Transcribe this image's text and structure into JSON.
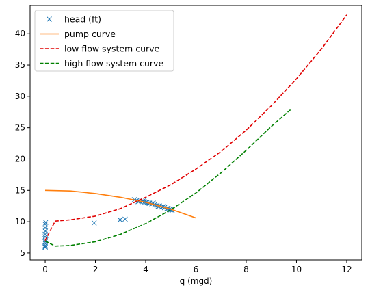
{
  "chart_data": {
    "type": "line",
    "title": "",
    "xlabel": "q (mgd)",
    "ylabel": "",
    "xlim": [
      -0.6,
      12.6
    ],
    "ylim": [
      3.9,
      44.5
    ],
    "xticks": [
      0,
      2,
      4,
      6,
      8,
      10,
      12
    ],
    "yticks": [
      5,
      10,
      15,
      20,
      25,
      30,
      35,
      40
    ],
    "grid": false,
    "legend_position": "top-left",
    "series": [
      {
        "name": "head (ft)",
        "kind": "scatter",
        "marker": "x",
        "color": "#1f77b4",
        "points": [
          [
            0.0,
            5.9
          ],
          [
            0.0,
            6.2
          ],
          [
            0.01,
            6.5
          ],
          [
            0.0,
            6.8
          ],
          [
            0.02,
            7.1
          ],
          [
            0.0,
            7.6
          ],
          [
            0.0,
            8.0
          ],
          [
            0.01,
            8.5
          ],
          [
            0.0,
            9.0
          ],
          [
            0.0,
            9.6
          ],
          [
            0.02,
            9.9
          ],
          [
            0.0,
            6.0
          ],
          [
            1.95,
            9.8
          ],
          [
            2.98,
            10.3
          ],
          [
            3.18,
            10.4
          ],
          [
            3.55,
            13.5
          ],
          [
            3.65,
            13.4
          ],
          [
            3.75,
            13.3
          ],
          [
            3.85,
            13.25
          ],
          [
            3.95,
            13.15
          ],
          [
            4.05,
            13.05
          ],
          [
            4.15,
            12.95
          ],
          [
            4.25,
            12.85
          ],
          [
            4.35,
            12.7
          ],
          [
            4.45,
            12.6
          ],
          [
            4.55,
            12.5
          ],
          [
            4.65,
            12.35
          ],
          [
            4.75,
            12.25
          ],
          [
            4.85,
            12.1
          ],
          [
            4.95,
            11.95
          ],
          [
            5.0,
            11.9
          ],
          [
            5.05,
            11.8
          ],
          [
            3.7,
            13.2
          ],
          [
            3.9,
            13.3
          ],
          [
            4.1,
            12.9
          ],
          [
            4.3,
            12.95
          ],
          [
            4.5,
            12.45
          ],
          [
            4.7,
            12.4
          ],
          [
            4.9,
            12.05
          ],
          [
            4.0,
            13.1
          ]
        ]
      },
      {
        "name": "pump curve",
        "kind": "line",
        "dash": "solid",
        "color": "#ff7f0e",
        "x": [
          0,
          1,
          2,
          3,
          4,
          5,
          6
        ],
        "y": [
          15.0,
          14.9,
          14.5,
          13.9,
          13.1,
          12.0,
          10.6
        ]
      },
      {
        "name": "low flow system curve",
        "kind": "line",
        "dash": "dashed",
        "color": "#e00000",
        "x": [
          0,
          0.4,
          1,
          2,
          3,
          4,
          5,
          6,
          7,
          8,
          9,
          10,
          11,
          12
        ],
        "y": [
          7.0,
          10.1,
          10.3,
          10.9,
          12.1,
          13.9,
          15.9,
          18.4,
          21.2,
          24.6,
          28.5,
          32.8,
          37.6,
          43.0
        ]
      },
      {
        "name": "high flow system curve",
        "kind": "line",
        "dash": "dashed",
        "color": "#008000",
        "x": [
          0,
          0.4,
          1,
          2,
          3,
          4,
          5,
          6,
          7,
          8,
          9,
          9.8
        ],
        "y": [
          6.9,
          6.1,
          6.2,
          6.8,
          8.0,
          9.7,
          11.9,
          14.6,
          17.8,
          21.4,
          25.2,
          28.0
        ]
      }
    ]
  }
}
